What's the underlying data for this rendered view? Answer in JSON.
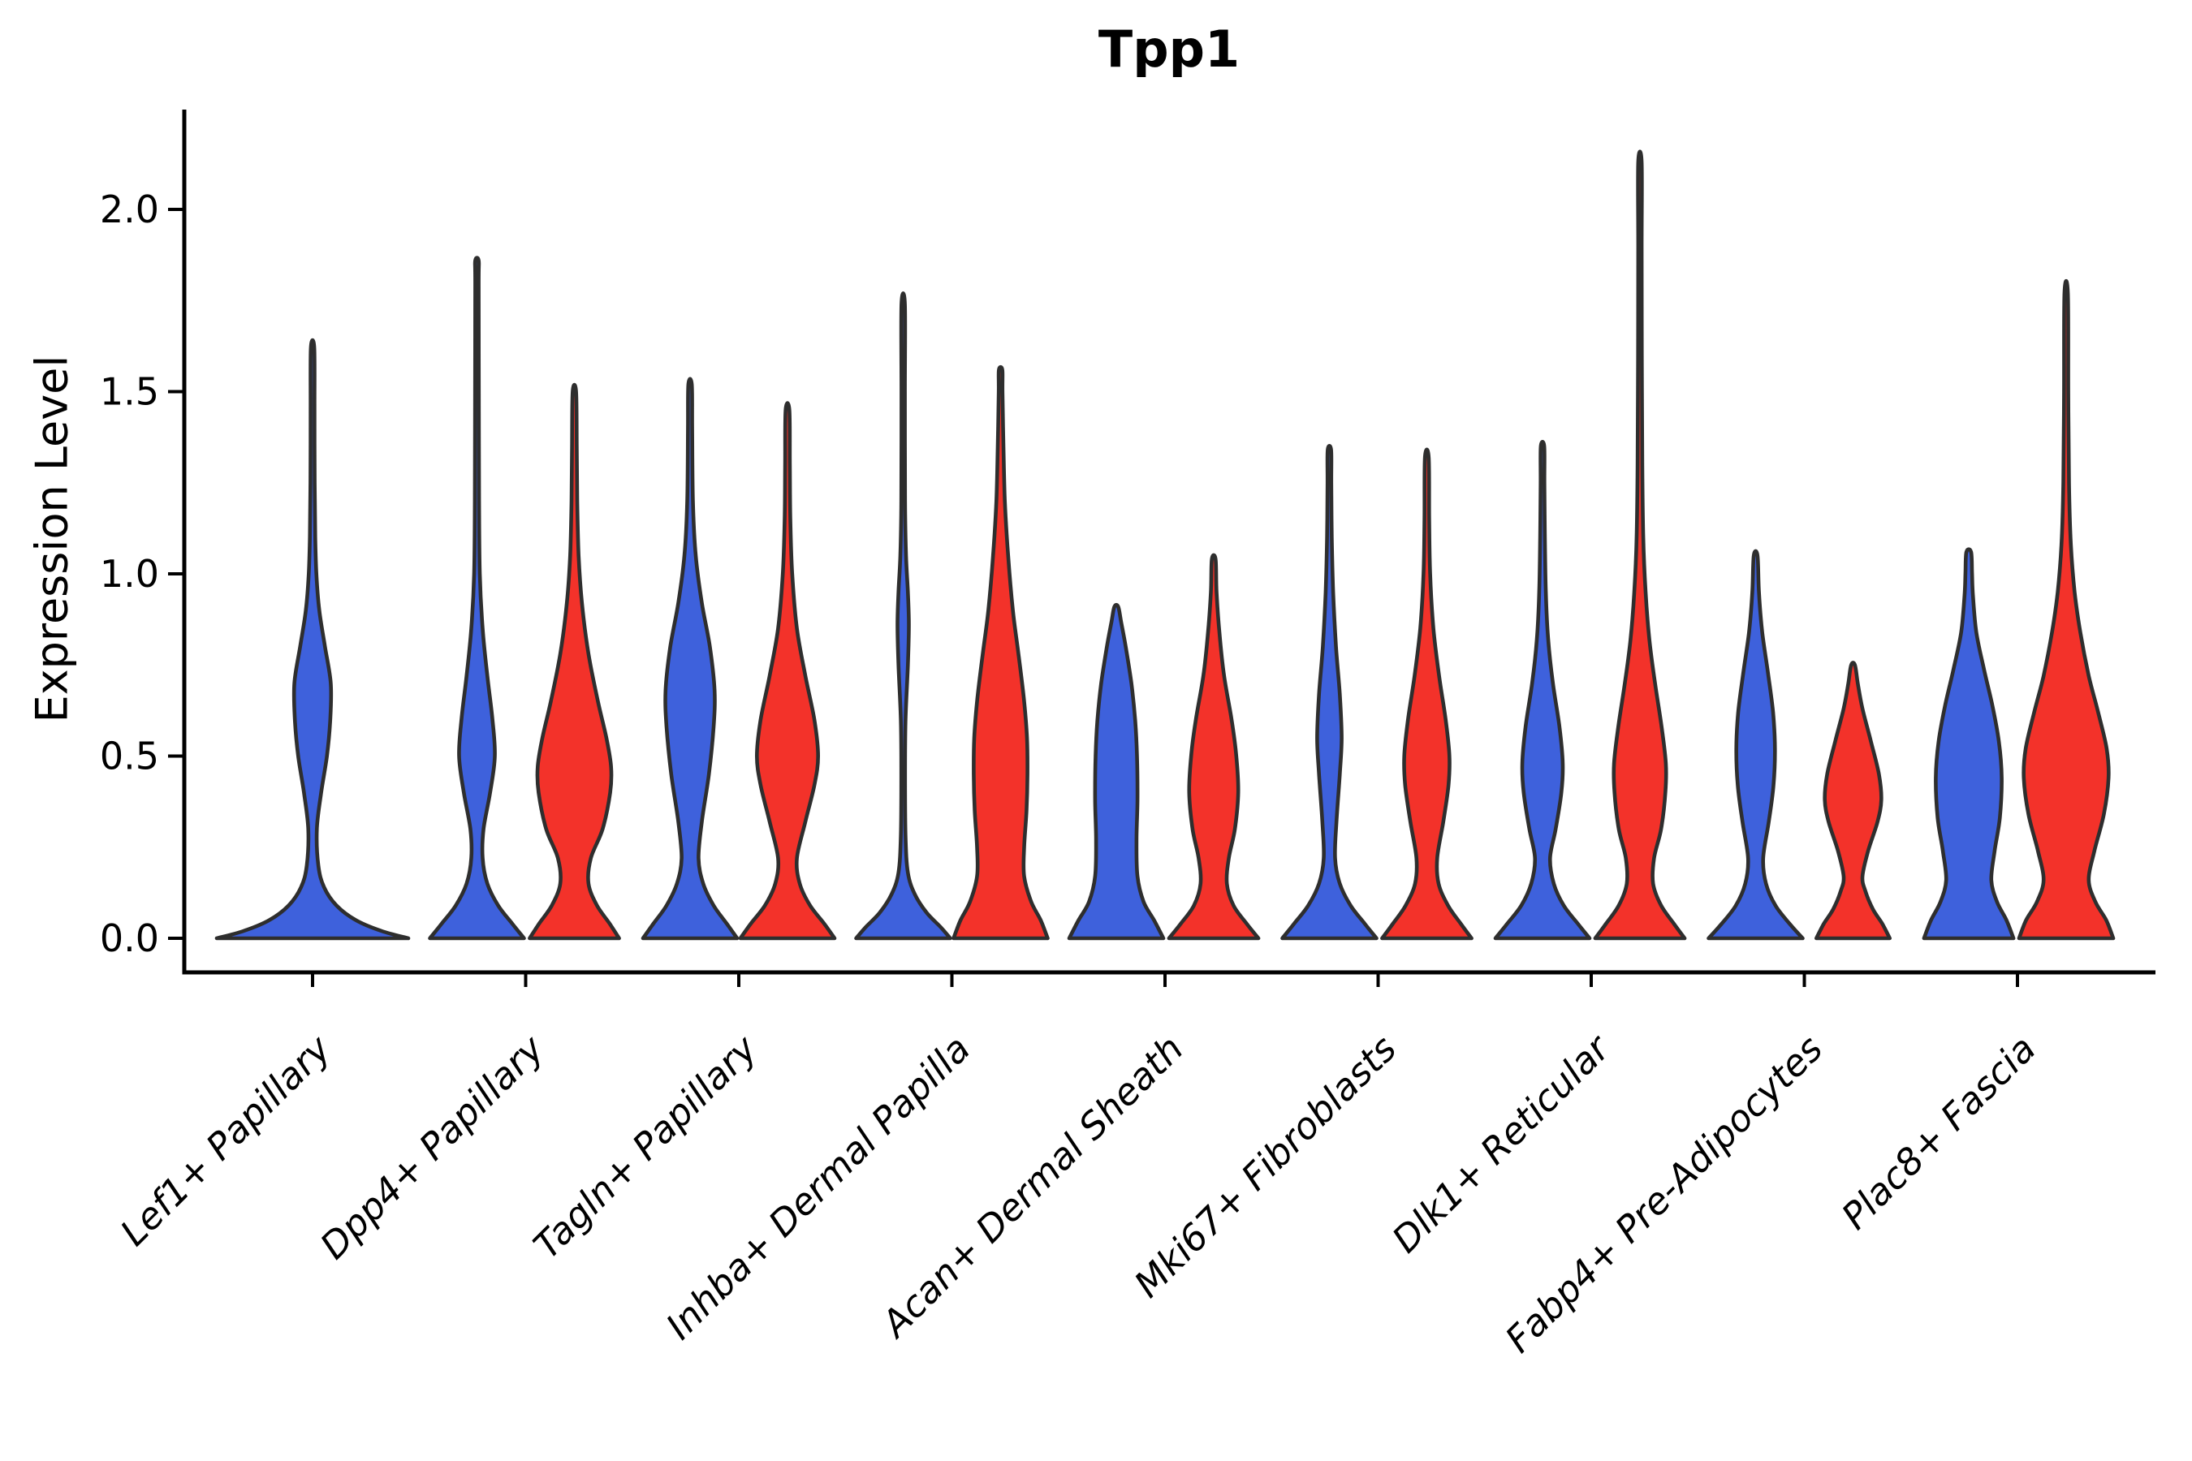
{
  "chart_data": {
    "type": "violin",
    "title": "Tpp1",
    "ylabel": "Expression Level",
    "xlabel": "",
    "ylim": [
      -0.09,
      2.28
    ],
    "yticks": [
      0.0,
      0.5,
      1.0,
      1.5,
      2.0
    ],
    "grid": false,
    "legend": "none",
    "categories": [
      "Lef1+ Papillary",
      "Dpp4+ Papillary",
      "Tagln+ Papillary",
      "Inhba+ Dermal Papilla",
      "Acan+ Dermal Sheath",
      "Mki67+ Fibroblasts",
      "Dlk1+ Reticular",
      "Fabp4+ Pre-Adipocytes",
      "Plac8+ Fascia"
    ],
    "series": [
      {
        "name": "blue",
        "color": "#3e61dc"
      },
      {
        "name": "red",
        "color": "#f3322a"
      }
    ],
    "outline_color": "#2e2e2e",
    "violins": [
      {
        "category": "Lef1+ Papillary",
        "series": "blue",
        "solo": true,
        "max": 1.62,
        "profile": [
          [
            0,
            1.0
          ],
          [
            0.02,
            0.72
          ],
          [
            0.05,
            0.45
          ],
          [
            0.09,
            0.25
          ],
          [
            0.14,
            0.12
          ],
          [
            0.2,
            0.06
          ],
          [
            0.3,
            0.045
          ],
          [
            0.4,
            0.09
          ],
          [
            0.5,
            0.15
          ],
          [
            0.6,
            0.185
          ],
          [
            0.7,
            0.19
          ],
          [
            0.8,
            0.13
          ],
          [
            0.9,
            0.07
          ],
          [
            1.0,
            0.04
          ],
          [
            1.1,
            0.028
          ],
          [
            1.25,
            0.022
          ],
          [
            1.45,
            0.02
          ],
          [
            1.62,
            0.015
          ]
        ]
      },
      {
        "category": "Dpp4+ Papillary",
        "series": "blue",
        "solo": false,
        "max": 1.86,
        "profile": [
          [
            0,
            1.0
          ],
          [
            0.04,
            0.75
          ],
          [
            0.09,
            0.45
          ],
          [
            0.15,
            0.22
          ],
          [
            0.22,
            0.12
          ],
          [
            0.3,
            0.14
          ],
          [
            0.4,
            0.28
          ],
          [
            0.5,
            0.38
          ],
          [
            0.6,
            0.33
          ],
          [
            0.72,
            0.22
          ],
          [
            0.85,
            0.12
          ],
          [
            1.0,
            0.06
          ],
          [
            1.2,
            0.045
          ],
          [
            1.5,
            0.04
          ],
          [
            1.8,
            0.035
          ],
          [
            1.86,
            0.03
          ]
        ]
      },
      {
        "category": "Dpp4+ Papillary",
        "series": "red",
        "solo": false,
        "max": 1.5,
        "profile": [
          [
            0,
            0.95
          ],
          [
            0.04,
            0.75
          ],
          [
            0.09,
            0.48
          ],
          [
            0.15,
            0.3
          ],
          [
            0.22,
            0.35
          ],
          [
            0.3,
            0.6
          ],
          [
            0.4,
            0.76
          ],
          [
            0.47,
            0.78
          ],
          [
            0.55,
            0.68
          ],
          [
            0.65,
            0.5
          ],
          [
            0.78,
            0.3
          ],
          [
            0.92,
            0.16
          ],
          [
            1.05,
            0.09
          ],
          [
            1.2,
            0.06
          ],
          [
            1.35,
            0.05
          ],
          [
            1.5,
            0.035
          ]
        ]
      },
      {
        "category": "Tagln+ Papillary",
        "series": "blue",
        "solo": false,
        "max": 1.52,
        "profile": [
          [
            0,
            1.0
          ],
          [
            0.04,
            0.78
          ],
          [
            0.09,
            0.5
          ],
          [
            0.15,
            0.28
          ],
          [
            0.22,
            0.18
          ],
          [
            0.32,
            0.25
          ],
          [
            0.45,
            0.4
          ],
          [
            0.58,
            0.5
          ],
          [
            0.68,
            0.52
          ],
          [
            0.8,
            0.42
          ],
          [
            0.92,
            0.25
          ],
          [
            1.05,
            0.12
          ],
          [
            1.2,
            0.06
          ],
          [
            1.4,
            0.045
          ],
          [
            1.52,
            0.035
          ]
        ]
      },
      {
        "category": "Tagln+ Papillary",
        "series": "red",
        "solo": false,
        "max": 1.45,
        "profile": [
          [
            0,
            1.0
          ],
          [
            0.04,
            0.78
          ],
          [
            0.09,
            0.48
          ],
          [
            0.15,
            0.26
          ],
          [
            0.22,
            0.2
          ],
          [
            0.32,
            0.38
          ],
          [
            0.42,
            0.57
          ],
          [
            0.5,
            0.65
          ],
          [
            0.6,
            0.57
          ],
          [
            0.72,
            0.38
          ],
          [
            0.85,
            0.2
          ],
          [
            1.0,
            0.1
          ],
          [
            1.15,
            0.06
          ],
          [
            1.3,
            0.05
          ],
          [
            1.45,
            0.04
          ]
        ]
      },
      {
        "category": "Inhba+ Dermal Papilla",
        "series": "blue",
        "solo": false,
        "max": 1.74,
        "profile": [
          [
            0,
            1.0
          ],
          [
            0.03,
            0.8
          ],
          [
            0.07,
            0.5
          ],
          [
            0.12,
            0.25
          ],
          [
            0.18,
            0.1
          ],
          [
            0.28,
            0.05
          ],
          [
            0.45,
            0.04
          ],
          [
            0.6,
            0.05
          ],
          [
            0.75,
            0.1
          ],
          [
            0.86,
            0.12
          ],
          [
            0.95,
            0.1
          ],
          [
            1.05,
            0.06
          ],
          [
            1.2,
            0.04
          ],
          [
            1.5,
            0.035
          ],
          [
            1.74,
            0.03
          ]
        ]
      },
      {
        "category": "Inhba+ Dermal Papilla",
        "series": "red",
        "solo": false,
        "max": 1.56,
        "profile": [
          [
            0,
            1.0
          ],
          [
            0.05,
            0.85
          ],
          [
            0.1,
            0.65
          ],
          [
            0.17,
            0.5
          ],
          [
            0.25,
            0.5
          ],
          [
            0.35,
            0.55
          ],
          [
            0.45,
            0.57
          ],
          [
            0.55,
            0.56
          ],
          [
            0.65,
            0.5
          ],
          [
            0.78,
            0.38
          ],
          [
            0.9,
            0.26
          ],
          [
            1.05,
            0.16
          ],
          [
            1.2,
            0.09
          ],
          [
            1.35,
            0.06
          ],
          [
            1.5,
            0.04
          ],
          [
            1.56,
            0.035
          ]
        ]
      },
      {
        "category": "Acan+ Dermal Sheath",
        "series": "blue",
        "solo": false,
        "max": 0.91,
        "profile": [
          [
            0,
            1.0
          ],
          [
            0.05,
            0.8
          ],
          [
            0.1,
            0.58
          ],
          [
            0.17,
            0.45
          ],
          [
            0.27,
            0.43
          ],
          [
            0.38,
            0.45
          ],
          [
            0.5,
            0.44
          ],
          [
            0.6,
            0.4
          ],
          [
            0.7,
            0.32
          ],
          [
            0.8,
            0.2
          ],
          [
            0.87,
            0.1
          ],
          [
            0.91,
            0.04
          ]
        ]
      },
      {
        "category": "Acan+ Dermal Sheath",
        "series": "red",
        "solo": false,
        "max": 1.04,
        "profile": [
          [
            0,
            0.95
          ],
          [
            0.04,
            0.7
          ],
          [
            0.09,
            0.42
          ],
          [
            0.15,
            0.28
          ],
          [
            0.22,
            0.32
          ],
          [
            0.3,
            0.45
          ],
          [
            0.4,
            0.52
          ],
          [
            0.5,
            0.48
          ],
          [
            0.6,
            0.38
          ],
          [
            0.72,
            0.22
          ],
          [
            0.84,
            0.12
          ],
          [
            0.95,
            0.06
          ],
          [
            1.04,
            0.04
          ]
        ]
      },
      {
        "category": "Mki67+ Fibroblasts",
        "series": "blue",
        "solo": false,
        "max": 1.34,
        "profile": [
          [
            0,
            1.0
          ],
          [
            0.04,
            0.75
          ],
          [
            0.09,
            0.45
          ],
          [
            0.15,
            0.22
          ],
          [
            0.22,
            0.12
          ],
          [
            0.32,
            0.15
          ],
          [
            0.45,
            0.22
          ],
          [
            0.55,
            0.26
          ],
          [
            0.67,
            0.22
          ],
          [
            0.8,
            0.14
          ],
          [
            0.95,
            0.08
          ],
          [
            1.1,
            0.05
          ],
          [
            1.25,
            0.04
          ],
          [
            1.34,
            0.035
          ]
        ]
      },
      {
        "category": "Mki67+ Fibroblasts",
        "series": "red",
        "solo": false,
        "max": 1.32,
        "profile": [
          [
            0,
            0.95
          ],
          [
            0.04,
            0.72
          ],
          [
            0.09,
            0.45
          ],
          [
            0.15,
            0.25
          ],
          [
            0.22,
            0.22
          ],
          [
            0.32,
            0.35
          ],
          [
            0.42,
            0.46
          ],
          [
            0.5,
            0.48
          ],
          [
            0.6,
            0.4
          ],
          [
            0.72,
            0.26
          ],
          [
            0.85,
            0.14
          ],
          [
            1.0,
            0.07
          ],
          [
            1.15,
            0.05
          ],
          [
            1.32,
            0.04
          ]
        ]
      },
      {
        "category": "Dlk1+ Reticular",
        "series": "blue",
        "solo": false,
        "max": 1.35,
        "profile": [
          [
            0,
            1.0
          ],
          [
            0.04,
            0.75
          ],
          [
            0.09,
            0.45
          ],
          [
            0.15,
            0.24
          ],
          [
            0.22,
            0.16
          ],
          [
            0.3,
            0.28
          ],
          [
            0.4,
            0.4
          ],
          [
            0.48,
            0.43
          ],
          [
            0.58,
            0.36
          ],
          [
            0.7,
            0.22
          ],
          [
            0.82,
            0.12
          ],
          [
            0.95,
            0.07
          ],
          [
            1.1,
            0.05
          ],
          [
            1.25,
            0.04
          ],
          [
            1.35,
            0.035
          ]
        ]
      },
      {
        "category": "Dlk1+ Reticular",
        "series": "red",
        "solo": false,
        "max": 2.13,
        "profile": [
          [
            0,
            0.95
          ],
          [
            0.04,
            0.72
          ],
          [
            0.09,
            0.45
          ],
          [
            0.15,
            0.28
          ],
          [
            0.22,
            0.3
          ],
          [
            0.3,
            0.45
          ],
          [
            0.4,
            0.54
          ],
          [
            0.48,
            0.55
          ],
          [
            0.58,
            0.46
          ],
          [
            0.7,
            0.32
          ],
          [
            0.82,
            0.2
          ],
          [
            0.95,
            0.12
          ],
          [
            1.1,
            0.07
          ],
          [
            1.3,
            0.05
          ],
          [
            1.6,
            0.04
          ],
          [
            1.9,
            0.035
          ],
          [
            2.13,
            0.03
          ]
        ]
      },
      {
        "category": "Fabp4+ Pre-Adipocytes",
        "series": "blue",
        "solo": false,
        "max": 1.05,
        "profile": [
          [
            0,
            1.0
          ],
          [
            0.04,
            0.72
          ],
          [
            0.09,
            0.42
          ],
          [
            0.15,
            0.22
          ],
          [
            0.22,
            0.16
          ],
          [
            0.32,
            0.28
          ],
          [
            0.42,
            0.38
          ],
          [
            0.52,
            0.41
          ],
          [
            0.62,
            0.37
          ],
          [
            0.73,
            0.26
          ],
          [
            0.84,
            0.14
          ],
          [
            0.95,
            0.07
          ],
          [
            1.05,
            0.04
          ]
        ]
      },
      {
        "category": "Fabp4+ Pre-Adipocytes",
        "series": "red",
        "solo": false,
        "max": 0.75,
        "profile": [
          [
            0,
            0.78
          ],
          [
            0.04,
            0.62
          ],
          [
            0.08,
            0.42
          ],
          [
            0.13,
            0.26
          ],
          [
            0.17,
            0.2
          ],
          [
            0.24,
            0.32
          ],
          [
            0.32,
            0.52
          ],
          [
            0.38,
            0.6
          ],
          [
            0.45,
            0.55
          ],
          [
            0.54,
            0.38
          ],
          [
            0.63,
            0.2
          ],
          [
            0.7,
            0.1
          ],
          [
            0.75,
            0.04
          ]
        ]
      },
      {
        "category": "Plac8+ Fascia",
        "series": "blue",
        "solo": false,
        "max": 1.06,
        "profile": [
          [
            0,
            0.95
          ],
          [
            0.05,
            0.8
          ],
          [
            0.1,
            0.6
          ],
          [
            0.16,
            0.48
          ],
          [
            0.24,
            0.55
          ],
          [
            0.33,
            0.66
          ],
          [
            0.44,
            0.7
          ],
          [
            0.54,
            0.64
          ],
          [
            0.64,
            0.5
          ],
          [
            0.74,
            0.32
          ],
          [
            0.84,
            0.16
          ],
          [
            0.94,
            0.09
          ],
          [
            1.0,
            0.07
          ],
          [
            1.06,
            0.05
          ]
        ]
      },
      {
        "category": "Plac8+ Fascia",
        "series": "red",
        "solo": false,
        "max": 1.77,
        "profile": [
          [
            0,
            1.0
          ],
          [
            0.05,
            0.85
          ],
          [
            0.1,
            0.62
          ],
          [
            0.16,
            0.48
          ],
          [
            0.24,
            0.6
          ],
          [
            0.34,
            0.8
          ],
          [
            0.44,
            0.9
          ],
          [
            0.52,
            0.86
          ],
          [
            0.62,
            0.68
          ],
          [
            0.72,
            0.48
          ],
          [
            0.84,
            0.3
          ],
          [
            0.95,
            0.18
          ],
          [
            1.08,
            0.1
          ],
          [
            1.25,
            0.06
          ],
          [
            1.5,
            0.045
          ],
          [
            1.77,
            0.035
          ]
        ]
      }
    ]
  }
}
